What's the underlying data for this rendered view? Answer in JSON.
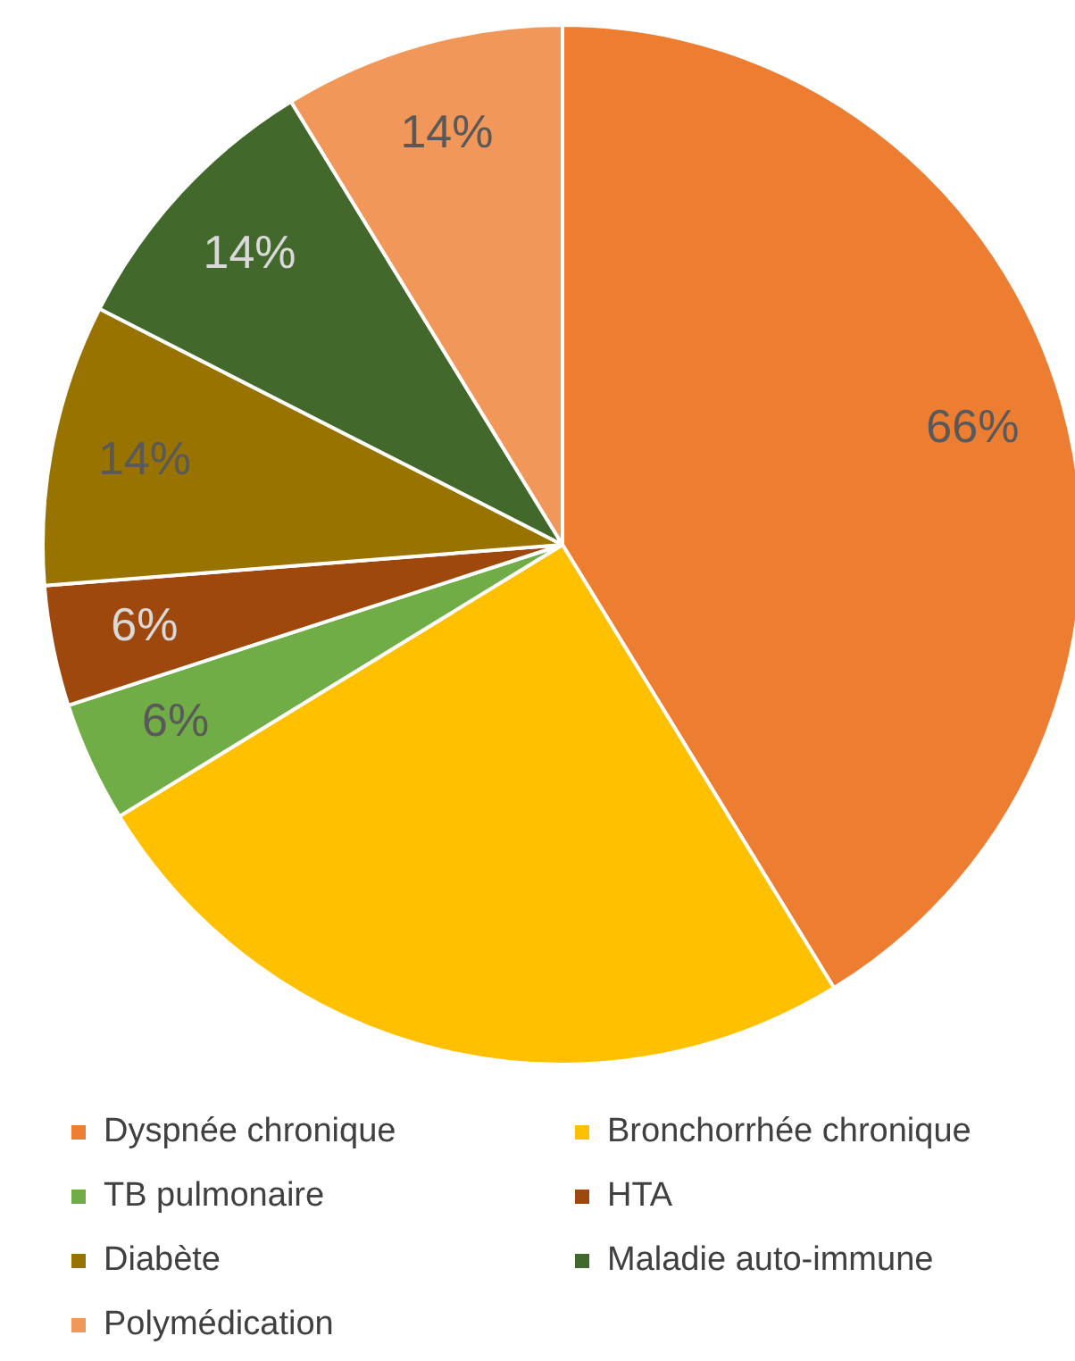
{
  "chart_data": {
    "type": "pie",
    "categories": [
      "Dyspnée chronique",
      "Bronchorrhée chronique",
      "TB pulmonaire",
      "HTA",
      "Diabète",
      "Maladie auto-immune",
      "Polymédication"
    ],
    "values": [
      66,
      40,
      6,
      6,
      14,
      14,
      14
    ],
    "value_labels": [
      "66%",
      null,
      "6%",
      "6%",
      "14%",
      "14%",
      "14%"
    ],
    "colors": [
      "#ed7d31",
      "#ffc000",
      "#70ad47",
      "#9e480e",
      "#997300",
      "#43682b",
      "#f1975a"
    ],
    "legend": "bottom"
  }
}
